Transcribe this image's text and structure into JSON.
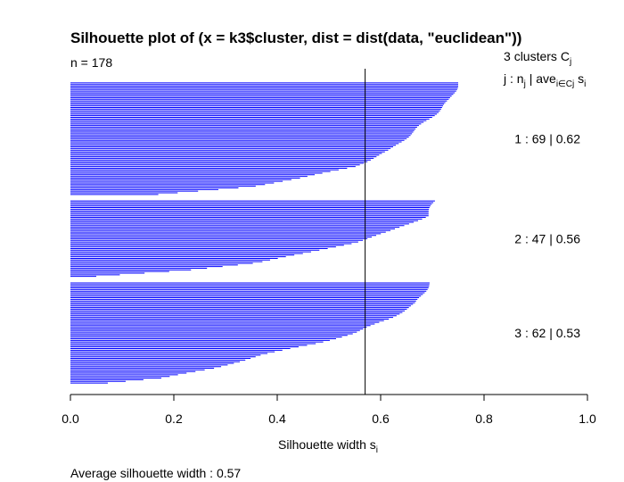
{
  "chart_data": {
    "type": "bar",
    "orientation": "horizontal",
    "title": "Silhouette plot of (x = k3$cluster, dist = dist(data, \"euclidean\"))",
    "n_label": "n = 178",
    "header": {
      "clusters_count": "3",
      "clusters_word": "clusters",
      "clusters_symbol": "C",
      "clusters_symbol_sub": "j",
      "col_j": "j :",
      "col_n": "n",
      "col_n_sub": "j",
      "col_sep": "|",
      "col_ave": "ave",
      "col_ave_sub": "i∈Cj",
      "col_s": "s",
      "col_s_sub": "i"
    },
    "xlabel": "Silhouette width s",
    "xlabel_sub": "i",
    "xlim": [
      0.0,
      1.0
    ],
    "xticks": [
      "0.0",
      "0.2",
      "0.4",
      "0.6",
      "0.8",
      "1.0"
    ],
    "average_label": "Average silhouette width :",
    "average_value": "0.57",
    "average_line": 0.57,
    "bar_color": "#0000ff",
    "clusters": [
      {
        "label": "1 :   69  |  0.62",
        "n": 69,
        "avg": 0.62,
        "max": 0.75,
        "min": 0.17,
        "profile": [
          [
            0,
            0.75
          ],
          [
            0.15,
            0.735
          ],
          [
            0.3,
            0.7
          ],
          [
            0.45,
            0.66
          ],
          [
            0.6,
            0.62
          ],
          [
            0.75,
            0.55
          ],
          [
            0.85,
            0.45
          ],
          [
            0.93,
            0.35
          ],
          [
            1.0,
            0.17
          ]
        ]
      },
      {
        "label": "2 :   47  |  0.56",
        "n": 47,
        "avg": 0.56,
        "max": 0.705,
        "min": 0.05,
        "profile": [
          [
            0,
            0.705
          ],
          [
            0.2,
            0.69
          ],
          [
            0.4,
            0.62
          ],
          [
            0.55,
            0.55
          ],
          [
            0.7,
            0.45
          ],
          [
            0.82,
            0.36
          ],
          [
            0.92,
            0.22
          ],
          [
            1.0,
            0.05
          ]
        ]
      },
      {
        "label": "3 :   62  |  0.53",
        "n": 62,
        "avg": 0.53,
        "max": 0.695,
        "min": 0.07,
        "profile": [
          [
            0,
            0.695
          ],
          [
            0.2,
            0.67
          ],
          [
            0.35,
            0.62
          ],
          [
            0.5,
            0.55
          ],
          [
            0.6,
            0.48
          ],
          [
            0.72,
            0.37
          ],
          [
            0.85,
            0.28
          ],
          [
            0.95,
            0.18
          ],
          [
            1.0,
            0.07
          ]
        ]
      }
    ]
  }
}
